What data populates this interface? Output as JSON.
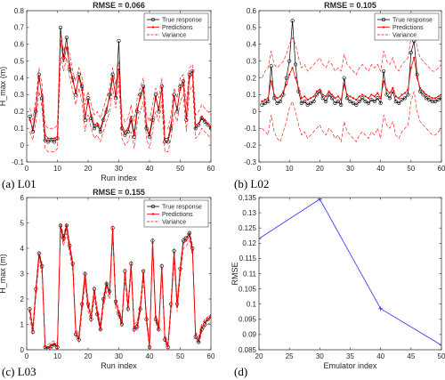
{
  "captions": [
    "(a) L01",
    "(b) L02",
    "(c) L03",
    "(d)"
  ],
  "colors": {
    "true": "#000000",
    "pred": "#ff0000",
    "var": "#ff0000",
    "rmse_line": "#3a3aff"
  },
  "chart_data": [
    {
      "type": "line",
      "title": "RMSE = 0.066",
      "xlabel": "Run index",
      "ylabel": "H_max (m)",
      "xlim": [
        0,
        60
      ],
      "ylim": [
        -0.1,
        0.8
      ],
      "xticks": [
        0,
        10,
        20,
        30,
        40,
        50,
        60
      ],
      "yticks": [
        -0.1,
        0,
        0.1,
        0.2,
        0.3,
        0.4,
        0.5,
        0.6,
        0.7,
        0.8
      ],
      "legend": "top-right",
      "x": [
        1,
        2,
        3,
        4,
        5,
        6,
        7,
        8,
        9,
        10,
        11,
        12,
        13,
        14,
        15,
        16,
        17,
        18,
        19,
        20,
        21,
        22,
        23,
        24,
        25,
        26,
        27,
        28,
        29,
        30,
        31,
        32,
        33,
        34,
        35,
        36,
        37,
        38,
        39,
        40,
        41,
        42,
        43,
        44,
        45,
        46,
        47,
        48,
        49,
        50,
        51,
        52,
        53,
        54,
        55,
        56,
        57,
        58,
        59,
        60
      ],
      "series": [
        {
          "name": "True response",
          "values": [
            0.17,
            0.08,
            0.2,
            0.42,
            0.28,
            0.03,
            0.02,
            0.03,
            0.02,
            0.04,
            0.7,
            0.52,
            0.64,
            0.45,
            0.4,
            0.3,
            0.42,
            0.35,
            0.15,
            0.28,
            0.16,
            0.1,
            0.12,
            0.08,
            0.15,
            0.2,
            0.3,
            0.42,
            0.28,
            0.62,
            0.1,
            0.06,
            0.08,
            0.15,
            0.05,
            0.2,
            0.3,
            0.35,
            0.1,
            0.05,
            0.15,
            0.3,
            0.2,
            0.35,
            0.02,
            0.02,
            0.1,
            0.3,
            0.2,
            0.35,
            0.38,
            0.15,
            0.42,
            0.44,
            0.1,
            0.12,
            0.16,
            0.14,
            0.12,
            0.1
          ]
        },
        {
          "name": "Predictions",
          "values": [
            0.15,
            0.1,
            0.22,
            0.4,
            0.3,
            0.06,
            0.04,
            0.04,
            0.04,
            0.05,
            0.62,
            0.5,
            0.58,
            0.48,
            0.38,
            0.32,
            0.4,
            0.33,
            0.17,
            0.26,
            0.18,
            0.12,
            0.13,
            0.1,
            0.16,
            0.22,
            0.28,
            0.4,
            0.3,
            0.45,
            0.12,
            0.08,
            0.1,
            0.17,
            0.07,
            0.22,
            0.28,
            0.33,
            0.12,
            0.07,
            0.17,
            0.28,
            0.22,
            0.33,
            0.04,
            0.04,
            0.12,
            0.28,
            0.22,
            0.33,
            0.36,
            0.17,
            0.4,
            0.42,
            0.12,
            0.13,
            0.17,
            0.15,
            0.13,
            0.11
          ]
        },
        {
          "name": "Variance",
          "values": [
            0.22,
            0.15,
            0.28,
            0.46,
            0.36,
            0.12,
            0.1,
            0.1,
            0.1,
            0.12,
            0.66,
            0.56,
            0.62,
            0.54,
            0.44,
            0.38,
            0.46,
            0.4,
            0.24,
            0.32,
            0.24,
            0.18,
            0.2,
            0.16,
            0.22,
            0.28,
            0.34,
            0.46,
            0.36,
            0.5,
            0.18,
            0.14,
            0.16,
            0.24,
            0.14,
            0.28,
            0.34,
            0.4,
            0.18,
            0.14,
            0.24,
            0.34,
            0.28,
            0.4,
            0.1,
            0.1,
            0.18,
            0.34,
            0.28,
            0.4,
            0.42,
            0.24,
            0.46,
            0.48,
            0.18,
            0.2,
            0.24,
            0.22,
            0.2,
            0.18
          ]
        },
        {
          "name": "",
          "values": [
            0.08,
            0.03,
            0.14,
            0.32,
            0.22,
            -0.02,
            -0.04,
            -0.04,
            -0.04,
            -0.02,
            0.52,
            0.44,
            0.52,
            0.4,
            0.32,
            0.24,
            0.34,
            0.26,
            0.08,
            0.18,
            0.1,
            0.04,
            0.06,
            0.02,
            0.08,
            0.14,
            0.2,
            0.34,
            0.22,
            0.38,
            0.04,
            0.0,
            0.02,
            0.08,
            -0.02,
            0.14,
            0.2,
            0.26,
            0.04,
            -0.02,
            0.08,
            0.2,
            0.14,
            0.26,
            -0.04,
            -0.04,
            0.04,
            0.2,
            0.14,
            0.26,
            0.3,
            0.08,
            0.32,
            0.36,
            0.04,
            0.06,
            0.1,
            0.08,
            0.06,
            0.04
          ]
        }
      ]
    },
    {
      "type": "line",
      "title": "RMSE = 0.105",
      "xlabel": "",
      "ylabel": "",
      "xlim": [
        0,
        60
      ],
      "ylim": [
        -0.3,
        0.6
      ],
      "xticks": [
        0,
        10,
        20,
        30,
        40,
        50,
        60
      ],
      "yticks": [
        -0.3,
        -0.2,
        -0.1,
        0,
        0.1,
        0.2,
        0.3,
        0.4,
        0.5,
        0.6
      ],
      "legend": "top-right",
      "x": [
        1,
        2,
        3,
        4,
        5,
        6,
        7,
        8,
        9,
        10,
        11,
        12,
        13,
        14,
        15,
        16,
        17,
        18,
        19,
        20,
        21,
        22,
        23,
        24,
        25,
        26,
        27,
        28,
        29,
        30,
        31,
        32,
        33,
        34,
        35,
        36,
        37,
        38,
        39,
        40,
        41,
        42,
        43,
        44,
        45,
        46,
        47,
        48,
        49,
        50,
        51,
        52,
        53,
        54,
        55,
        56,
        57,
        58,
        59,
        60
      ],
      "series": [
        {
          "name": "True response",
          "values": [
            0.04,
            0.05,
            0.06,
            0.27,
            0.08,
            0.05,
            0.06,
            0.1,
            0.2,
            0.3,
            0.54,
            0.28,
            0.12,
            0.05,
            0.06,
            0.04,
            0.05,
            0.06,
            0.1,
            0.12,
            0.08,
            0.06,
            0.1,
            0.08,
            0.05,
            0.06,
            0.04,
            0.2,
            0.08,
            0.06,
            0.05,
            0.04,
            0.06,
            0.08,
            0.06,
            0.05,
            0.07,
            0.06,
            0.08,
            0.05,
            0.24,
            0.1,
            0.08,
            0.12,
            0.06,
            0.05,
            0.07,
            0.08,
            0.1,
            0.35,
            0.42,
            0.22,
            0.12,
            0.1,
            0.08,
            0.07,
            0.06,
            0.06,
            0.07,
            0.08
          ]
        },
        {
          "name": "Predictions",
          "values": [
            0.06,
            0.07,
            0.08,
            0.18,
            0.1,
            0.08,
            0.09,
            0.12,
            0.16,
            0.22,
            0.26,
            0.2,
            0.14,
            0.08,
            0.09,
            0.07,
            0.08,
            0.09,
            0.12,
            0.13,
            0.1,
            0.09,
            0.12,
            0.1,
            0.08,
            0.09,
            0.07,
            0.16,
            0.1,
            0.09,
            0.08,
            0.07,
            0.09,
            0.1,
            0.09,
            0.08,
            0.1,
            0.09,
            0.11,
            0.08,
            0.18,
            0.13,
            0.11,
            0.14,
            0.09,
            0.08,
            0.1,
            0.11,
            0.13,
            0.26,
            0.32,
            0.2,
            0.14,
            0.12,
            0.1,
            0.09,
            0.08,
            0.08,
            0.09,
            0.1
          ]
        },
        {
          "name": "Variance",
          "values": [
            0.2,
            0.24,
            0.26,
            0.36,
            0.28,
            0.26,
            0.28,
            0.3,
            0.34,
            0.4,
            0.44,
            0.4,
            0.32,
            0.26,
            0.28,
            0.24,
            0.26,
            0.28,
            0.3,
            0.32,
            0.28,
            0.26,
            0.3,
            0.28,
            0.24,
            0.26,
            0.24,
            0.34,
            0.28,
            0.26,
            0.24,
            0.22,
            0.26,
            0.28,
            0.26,
            0.24,
            0.28,
            0.26,
            0.28,
            0.24,
            0.36,
            0.3,
            0.28,
            0.32,
            0.26,
            0.24,
            0.28,
            0.3,
            0.32,
            0.44,
            0.48,
            0.38,
            0.32,
            0.3,
            0.28,
            0.26,
            0.24,
            0.24,
            0.26,
            0.28
          ]
        },
        {
          "name": "",
          "values": [
            -0.1,
            -0.12,
            -0.14,
            -0.02,
            -0.12,
            -0.16,
            -0.18,
            -0.12,
            -0.06,
            0.02,
            0.06,
            0.0,
            -0.08,
            -0.14,
            -0.12,
            -0.16,
            -0.14,
            -0.12,
            -0.1,
            -0.08,
            -0.12,
            -0.14,
            -0.1,
            -0.12,
            -0.16,
            -0.14,
            -0.18,
            -0.06,
            -0.12,
            -0.14,
            -0.16,
            -0.18,
            -0.14,
            -0.12,
            -0.14,
            -0.16,
            -0.12,
            -0.14,
            -0.1,
            -0.16,
            -0.02,
            -0.08,
            -0.1,
            -0.06,
            -0.14,
            -0.16,
            -0.12,
            -0.1,
            -0.08,
            0.06,
            0.12,
            0.0,
            -0.06,
            -0.08,
            -0.1,
            -0.12,
            -0.14,
            -0.14,
            -0.12,
            -0.1
          ]
        }
      ]
    },
    {
      "type": "line",
      "title": "RMSE = 0.155",
      "xlabel": "Run index",
      "ylabel": "H_max (m)",
      "xlim": [
        0,
        60
      ],
      "ylim": [
        0,
        6
      ],
      "xticks": [
        0,
        10,
        20,
        30,
        40,
        50,
        60
      ],
      "yticks": [
        0,
        1,
        2,
        3,
        4,
        5,
        6
      ],
      "legend": "top-right",
      "x": [
        1,
        2,
        3,
        4,
        5,
        6,
        7,
        8,
        9,
        10,
        11,
        12,
        13,
        14,
        15,
        16,
        17,
        18,
        19,
        20,
        21,
        22,
        23,
        24,
        25,
        26,
        27,
        28,
        29,
        30,
        31,
        32,
        33,
        34,
        35,
        36,
        37,
        38,
        39,
        40,
        41,
        42,
        43,
        44,
        45,
        46,
        47,
        48,
        49,
        50,
        51,
        52,
        53,
        54,
        55,
        56,
        57,
        58,
        59,
        60
      ],
      "series": [
        {
          "name": "True response",
          "values": [
            1.6,
            0.7,
            2.4,
            3.8,
            3.3,
            0.1,
            0.05,
            0.15,
            0.2,
            0.1,
            4.9,
            4.4,
            4.9,
            4.1,
            3.4,
            0.6,
            0.4,
            1.8,
            3.0,
            1.8,
            1.2,
            2.4,
            1.4,
            0.8,
            2.0,
            2.6,
            2.3,
            4.8,
            1.9,
            1.4,
            1.0,
            3.1,
            1.6,
            3.4,
            0.8,
            0.9,
            1.6,
            3.1,
            1.2,
            0.1,
            4.3,
            1.2,
            0.8,
            3.3,
            0.4,
            0.1,
            1.8,
            3.9,
            1.8,
            3.2,
            4.3,
            4.4,
            4.6,
            4.0,
            0.5,
            0.3,
            0.8,
            1.0,
            1.2,
            1.3
          ]
        },
        {
          "name": "Predictions",
          "values": [
            1.5,
            0.8,
            2.3,
            3.7,
            3.2,
            0.15,
            0.1,
            0.2,
            0.25,
            0.15,
            4.8,
            4.3,
            4.8,
            4.0,
            3.3,
            0.7,
            0.5,
            1.7,
            2.9,
            1.7,
            1.3,
            2.3,
            1.5,
            0.9,
            1.9,
            2.5,
            2.2,
            4.7,
            1.8,
            1.5,
            1.1,
            3.0,
            1.7,
            3.3,
            0.9,
            1.0,
            1.7,
            3.0,
            1.3,
            0.15,
            4.2,
            1.3,
            0.9,
            3.2,
            0.5,
            0.15,
            1.7,
            3.8,
            1.7,
            3.1,
            4.2,
            4.3,
            4.5,
            3.9,
            0.6,
            0.4,
            0.9,
            1.1,
            1.2,
            1.3
          ]
        },
        {
          "name": "Variance",
          "values": [
            1.7,
            0.9,
            2.5,
            3.9,
            3.4,
            0.25,
            0.2,
            0.3,
            0.35,
            0.25,
            5.0,
            4.5,
            5.0,
            4.2,
            3.5,
            0.8,
            0.6,
            1.9,
            3.1,
            1.9,
            1.4,
            2.5,
            1.6,
            1.0,
            2.1,
            2.7,
            2.4,
            4.9,
            2.0,
            1.6,
            1.2,
            3.2,
            1.8,
            3.5,
            1.0,
            1.1,
            1.8,
            3.2,
            1.4,
            0.25,
            4.4,
            1.4,
            1.0,
            3.4,
            0.6,
            0.25,
            1.9,
            4.0,
            1.9,
            3.3,
            4.4,
            4.5,
            4.7,
            4.1,
            0.7,
            0.5,
            1.0,
            1.2,
            1.3,
            1.4
          ]
        },
        {
          "name": "",
          "values": [
            1.3,
            0.6,
            2.1,
            3.5,
            3.0,
            0.0,
            -0.05,
            0.05,
            0.1,
            0.0,
            4.6,
            4.1,
            4.6,
            3.8,
            3.1,
            0.5,
            0.3,
            1.5,
            2.7,
            1.5,
            1.1,
            2.1,
            1.3,
            0.7,
            1.7,
            2.3,
            2.0,
            4.5,
            1.6,
            1.3,
            0.9,
            2.8,
            1.5,
            3.1,
            0.7,
            0.8,
            1.5,
            2.8,
            1.1,
            0.0,
            4.0,
            1.1,
            0.7,
            3.0,
            0.3,
            0.0,
            1.5,
            3.6,
            1.5,
            2.9,
            4.0,
            4.1,
            4.3,
            3.7,
            0.4,
            0.2,
            0.7,
            0.9,
            1.0,
            1.1
          ]
        }
      ]
    },
    {
      "type": "line",
      "title": "",
      "xlabel": "Emulator index",
      "ylabel": "RMSE",
      "xlim": [
        20,
        50
      ],
      "ylim": [
        0.085,
        0.135
      ],
      "xticks": [
        20,
        25,
        30,
        35,
        40,
        45,
        50
      ],
      "yticks": [
        0.085,
        0.09,
        0.095,
        0.1,
        0.105,
        0.11,
        0.115,
        0.12,
        0.125,
        0.13,
        0.135
      ],
      "legend": "none",
      "x": [
        20,
        30,
        40,
        50
      ],
      "series": [
        {
          "name": "",
          "values": [
            0.1215,
            0.1345,
            0.0985,
            0.0865
          ]
        }
      ]
    }
  ]
}
